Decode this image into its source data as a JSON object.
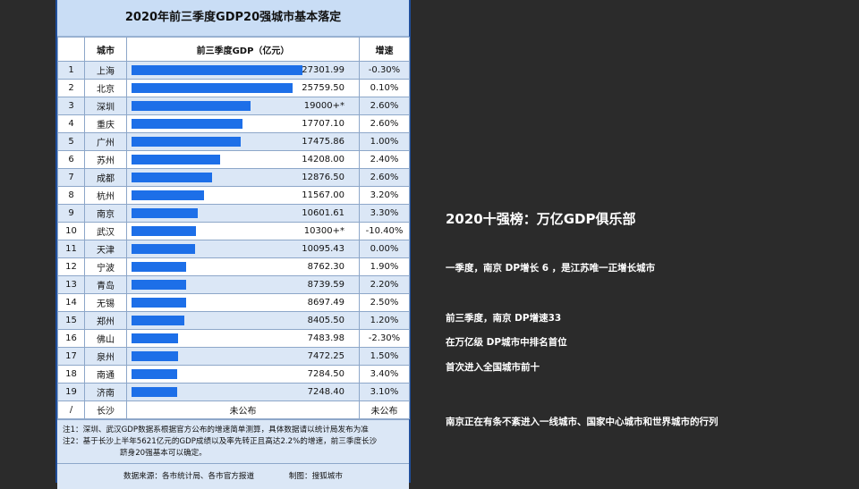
{
  "table": {
    "title": "2020年前三季度GDP20强城市基本落定",
    "headers": {
      "idx": "",
      "city": "城市",
      "gdp": "前三季度GDP（亿元）",
      "growth": "增速"
    },
    "max_gdp": 27301.99,
    "rows": [
      {
        "idx": "1",
        "city": "上海",
        "gdp": "27301.99",
        "value": 27301.99,
        "growth": "-0.30%"
      },
      {
        "idx": "2",
        "city": "北京",
        "gdp": "25759.50",
        "value": 25759.5,
        "growth": "0.10%"
      },
      {
        "idx": "3",
        "city": "深圳",
        "gdp": "19000+*",
        "value": 19000,
        "growth": "2.60%"
      },
      {
        "idx": "4",
        "city": "重庆",
        "gdp": "17707.10",
        "value": 17707.1,
        "growth": "2.60%"
      },
      {
        "idx": "5",
        "city": "广州",
        "gdp": "17475.86",
        "value": 17475.86,
        "growth": "1.00%"
      },
      {
        "idx": "6",
        "city": "苏州",
        "gdp": "14208.00",
        "value": 14208.0,
        "growth": "2.40%"
      },
      {
        "idx": "7",
        "city": "成都",
        "gdp": "12876.50",
        "value": 12876.5,
        "growth": "2.60%"
      },
      {
        "idx": "8",
        "city": "杭州",
        "gdp": "11567.00",
        "value": 11567.0,
        "growth": "3.20%"
      },
      {
        "idx": "9",
        "city": "南京",
        "gdp": "10601.61",
        "value": 10601.61,
        "growth": "3.30%"
      },
      {
        "idx": "10",
        "city": "武汉",
        "gdp": "10300+*",
        "value": 10300,
        "growth": "-10.40%"
      },
      {
        "idx": "11",
        "city": "天津",
        "gdp": "10095.43",
        "value": 10095.43,
        "growth": "0.00%"
      },
      {
        "idx": "12",
        "city": "宁波",
        "gdp": "8762.30",
        "value": 8762.3,
        "growth": "1.90%"
      },
      {
        "idx": "13",
        "city": "青岛",
        "gdp": "8739.59",
        "value": 8739.59,
        "growth": "2.20%"
      },
      {
        "idx": "14",
        "city": "无锡",
        "gdp": "8697.49",
        "value": 8697.49,
        "growth": "2.50%"
      },
      {
        "idx": "15",
        "city": "郑州",
        "gdp": "8405.50",
        "value": 8405.5,
        "growth": "1.20%"
      },
      {
        "idx": "16",
        "city": "佛山",
        "gdp": "7483.98",
        "value": 7483.98,
        "growth": "-2.30%"
      },
      {
        "idx": "17",
        "city": "泉州",
        "gdp": "7472.25",
        "value": 7472.25,
        "growth": "1.50%"
      },
      {
        "idx": "18",
        "city": "南通",
        "gdp": "7284.50",
        "value": 7284.5,
        "growth": "3.40%"
      },
      {
        "idx": "19",
        "city": "济南",
        "gdp": "7248.40",
        "value": 7248.4,
        "growth": "3.10%"
      }
    ],
    "last_row": {
      "idx": "/",
      "city": "长沙",
      "gdp": "未公布",
      "growth": "未公布"
    },
    "note1": "注1：深圳、武汉GDP数据系根据官方公布的增速简单测算，具体数据请以统计局发布为准",
    "note2": "注2：基于长沙上半年5621亿元的GDP成绩以及率先转正且高达2.2%的增速，前三季度长沙",
    "note2b": "跻身20强基本可以确定。",
    "source": "数据来源：各市统计局、各市官方报道",
    "maker": "制图：搜狐城市",
    "bar_color": "#1d6fe8"
  },
  "right": {
    "title": "2020十强榜：万亿GDP俱乐部",
    "line1": "一季度，南京  DP增长  6   ，是江苏唯一正增长城市",
    "line2": "前三季度，南京  DP增速33",
    "line3": "在万亿级 DP城市中排名首位",
    "line4": "首次进入全国城市前十",
    "line5": "南京正在有条不紊进入一线城市、国家中心城市和世界城市的行列"
  }
}
